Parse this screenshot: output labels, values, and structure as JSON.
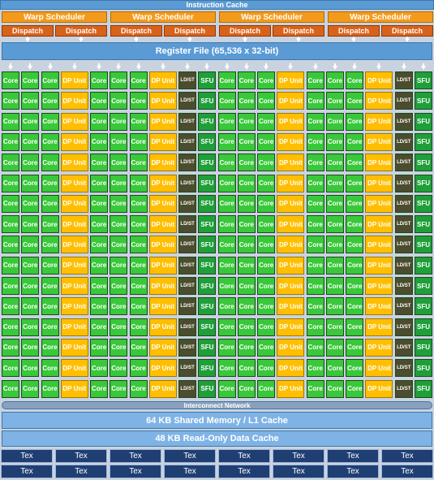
{
  "instruction_cache": "Instruction Cache",
  "warp_schedulers": [
    {
      "label": "Warp Scheduler",
      "dispatch": [
        "Dispatch",
        "Dispatch"
      ]
    },
    {
      "label": "Warp Scheduler",
      "dispatch": [
        "Dispatch",
        "Dispatch"
      ]
    },
    {
      "label": "Warp Scheduler",
      "dispatch": [
        "Dispatch",
        "Dispatch"
      ]
    },
    {
      "label": "Warp Scheduler",
      "dispatch": [
        "Dispatch",
        "Dispatch"
      ]
    }
  ],
  "register_file": "Register File (65,536 x 32-bit)",
  "unit_rows": [
    [
      "Core",
      "Core",
      "Core",
      "DP Unit",
      "Core",
      "Core",
      "Core",
      "DP Unit",
      "LD/ST",
      "SFU",
      "Core",
      "Core",
      "Core",
      "DP Unit",
      "Core",
      "Core",
      "Core",
      "DP Unit",
      "LD/ST",
      "SFU"
    ],
    [
      "Core",
      "Core",
      "Core",
      "DP Unit",
      "Core",
      "Core",
      "Core",
      "DP Unit",
      "LD/ST",
      "SFU",
      "Core",
      "Core",
      "Core",
      "DP Unit",
      "Core",
      "Core",
      "Core",
      "DP Unit",
      "LD/ST",
      "SFU"
    ],
    [
      "Core",
      "Core",
      "Core",
      "DP Unit",
      "Core",
      "Core",
      "Core",
      "DP Unit",
      "LD/ST",
      "SFU",
      "Core",
      "Core",
      "Core",
      "DP Unit",
      "Core",
      "Core",
      "Core",
      "DP Unit",
      "LD/ST",
      "SFU"
    ],
    [
      "Core",
      "Core",
      "Core",
      "DP Unit",
      "Core",
      "Core",
      "Core",
      "DP Unit",
      "LD/ST",
      "SFU",
      "Core",
      "Core",
      "Core",
      "DP Unit",
      "Core",
      "Core",
      "Core",
      "DP Unit",
      "LD/ST",
      "SFU"
    ],
    [
      "Core",
      "Core",
      "Core",
      "DP Unit",
      "Core",
      "Core",
      "Core",
      "DP Unit",
      "LD/ST",
      "SFU",
      "Core",
      "Core",
      "Core",
      "DP Unit",
      "Core",
      "Core",
      "Core",
      "DP Unit",
      "LD/ST",
      "SFU"
    ],
    [
      "Core",
      "Core",
      "Core",
      "DP Unit",
      "Core",
      "Core",
      "Core",
      "DP Unit",
      "LD/ST",
      "SFU",
      "Core",
      "Core",
      "Core",
      "DP Unit",
      "Core",
      "Core",
      "Core",
      "DP Unit",
      "LD/ST",
      "SFU"
    ],
    [
      "Core",
      "Core",
      "Core",
      "DP Unit",
      "Core",
      "Core",
      "Core",
      "DP Unit",
      "LD/ST",
      "SFU",
      "Core",
      "Core",
      "Core",
      "DP Unit",
      "Core",
      "Core",
      "Core",
      "DP Unit",
      "LD/ST",
      "SFU"
    ],
    [
      "Core",
      "Core",
      "Core",
      "DP Unit",
      "Core",
      "Core",
      "Core",
      "DP Unit",
      "LD/ST",
      "SFU",
      "Core",
      "Core",
      "Core",
      "DP Unit",
      "Core",
      "Core",
      "Core",
      "DP Unit",
      "LD/ST",
      "SFU"
    ],
    [
      "Core",
      "Core",
      "Core",
      "DP Unit",
      "Core",
      "Core",
      "Core",
      "DP Unit",
      "LD/ST",
      "SFU",
      "Core",
      "Core",
      "Core",
      "DP Unit",
      "Core",
      "Core",
      "Core",
      "DP Unit",
      "LD/ST",
      "SFU"
    ],
    [
      "Core",
      "Core",
      "Core",
      "DP Unit",
      "Core",
      "Core",
      "Core",
      "DP Unit",
      "LD/ST",
      "SFU",
      "Core",
      "Core",
      "Core",
      "DP Unit",
      "Core",
      "Core",
      "Core",
      "DP Unit",
      "LD/ST",
      "SFU"
    ],
    [
      "Core",
      "Core",
      "Core",
      "DP Unit",
      "Core",
      "Core",
      "Core",
      "DP Unit",
      "LD/ST",
      "SFU",
      "Core",
      "Core",
      "Core",
      "DP Unit",
      "Core",
      "Core",
      "Core",
      "DP Unit",
      "LD/ST",
      "SFU"
    ],
    [
      "Core",
      "Core",
      "Core",
      "DP Unit",
      "Core",
      "Core",
      "Core",
      "DP Unit",
      "LD/ST",
      "SFU",
      "Core",
      "Core",
      "Core",
      "DP Unit",
      "Core",
      "Core",
      "Core",
      "DP Unit",
      "LD/ST",
      "SFU"
    ],
    [
      "Core",
      "Core",
      "Core",
      "DP Unit",
      "Core",
      "Core",
      "Core",
      "DP Unit",
      "LD/ST",
      "SFU",
      "Core",
      "Core",
      "Core",
      "DP Unit",
      "Core",
      "Core",
      "Core",
      "DP Unit",
      "LD/ST",
      "SFU"
    ],
    [
      "Core",
      "Core",
      "Core",
      "DP Unit",
      "Core",
      "Core",
      "Core",
      "DP Unit",
      "LD/ST",
      "SFU",
      "Core",
      "Core",
      "Core",
      "DP Unit",
      "Core",
      "Core",
      "Core",
      "DP Unit",
      "LD/ST",
      "SFU"
    ],
    [
      "Core",
      "Core",
      "Core",
      "DP Unit",
      "Core",
      "Core",
      "Core",
      "DP Unit",
      "LD/ST",
      "SFU",
      "Core",
      "Core",
      "Core",
      "DP Unit",
      "Core",
      "Core",
      "Core",
      "DP Unit",
      "LD/ST",
      "SFU"
    ],
    [
      "Core",
      "Core",
      "Core",
      "DP Unit",
      "Core",
      "Core",
      "Core",
      "DP Unit",
      "LD/ST",
      "SFU",
      "Core",
      "Core",
      "Core",
      "DP Unit",
      "Core",
      "Core",
      "Core",
      "DP Unit",
      "LD/ST",
      "SFU"
    ]
  ],
  "interconnect": "Interconnect Network",
  "shared_memory": "64 KB Shared Memory / L1 Cache",
  "read_only_cache": "48 KB Read-Only Data Cache",
  "tex_rows": [
    [
      "Tex",
      "Tex",
      "Tex",
      "Tex",
      "Tex",
      "Tex",
      "Tex",
      "Tex"
    ],
    [
      "Tex",
      "Tex",
      "Tex",
      "Tex",
      "Tex",
      "Tex",
      "Tex",
      "Tex"
    ]
  ]
}
